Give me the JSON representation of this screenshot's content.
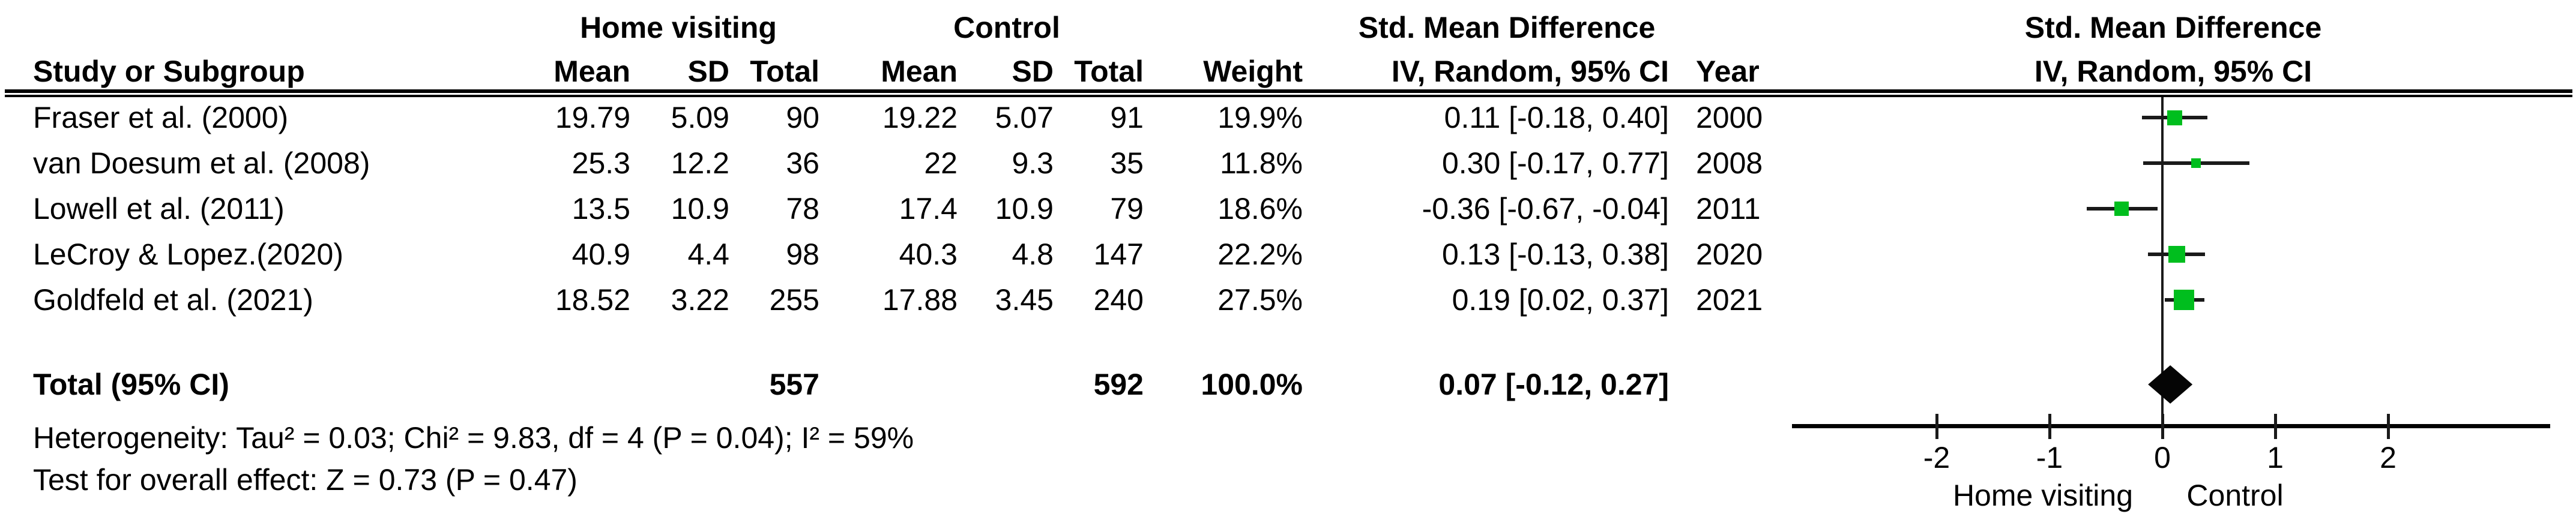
{
  "figure": {
    "kind": "meta-analysis forest plot",
    "colors": {
      "marker_green": "#00BE1E",
      "line_black": "#1a1a1a",
      "diamond_black": "#050505"
    }
  },
  "header": {
    "group_home_visiting": "Home visiting",
    "group_control": "Control",
    "group_smd_table": "Std. Mean Difference",
    "group_smd_plot": "Std. Mean Difference",
    "col_study": "Study or Subgroup",
    "col_mean_hv": "Mean",
    "col_sd_hv": "SD",
    "col_total_hv": "Total",
    "col_mean_c": "Mean",
    "col_sd_c": "SD",
    "col_total_c": "Total",
    "col_weight": "Weight",
    "col_iv_table": "IV, Random, 95% CI",
    "col_year": "Year",
    "col_iv_plot": "IV, Random, 95% CI"
  },
  "studies": [
    {
      "label": "Fraser et al. (2000)",
      "hv_mean": "19.79",
      "hv_sd": "5.09",
      "hv_total": "90",
      "c_mean": "19.22",
      "c_sd": "5.07",
      "c_total": "91",
      "weight": "19.9%",
      "ci_text": "0.11 [-0.18, 0.40]",
      "year": "2000"
    },
    {
      "label": "van Doesum et al. (2008)",
      "hv_mean": "25.3",
      "hv_sd": "12.2",
      "hv_total": "36",
      "c_mean": "22",
      "c_sd": "9.3",
      "c_total": "35",
      "weight": "11.8%",
      "ci_text": "0.30 [-0.17, 0.77]",
      "year": "2008"
    },
    {
      "label": "Lowell et al. (2011)",
      "hv_mean": "13.5",
      "hv_sd": "10.9",
      "hv_total": "78",
      "c_mean": "17.4",
      "c_sd": "10.9",
      "c_total": "79",
      "weight": "18.6%",
      "ci_text": "-0.36 [-0.67, -0.04]",
      "year": "2011"
    },
    {
      "label": "LeCroy & Lopez.(2020)",
      "hv_mean": "40.9",
      "hv_sd": "4.4",
      "hv_total": "98",
      "c_mean": "40.3",
      "c_sd": "4.8",
      "c_total": "147",
      "weight": "22.2%",
      "ci_text": "0.13 [-0.13, 0.38]",
      "year": "2020"
    },
    {
      "label": "Goldfeld et al. (2021)",
      "hv_mean": "18.52",
      "hv_sd": "3.22",
      "hv_total": "255",
      "c_mean": "17.88",
      "c_sd": "3.45",
      "c_total": "240",
      "weight": "27.5%",
      "ci_text": "0.19 [0.02, 0.37]",
      "year": "2021"
    }
  ],
  "total_row": {
    "label": "Total (95% CI)",
    "hv_total": "557",
    "c_total": "592",
    "weight": "100.0%",
    "ci_text": "0.07 [-0.12, 0.27]"
  },
  "footer": {
    "heterogeneity": "Heterogeneity: Tau² = 0.03; Chi² = 9.83, df = 4 (P = 0.04); I² = 59%",
    "overall_effect": "Test for overall effect: Z = 0.73 (P = 0.47)"
  },
  "axis": {
    "label_left": "Home visiting",
    "label_right": "Control"
  },
  "chart_data": {
    "type": "forest",
    "title": "Std. Mean Difference",
    "effect_model": "IV, Random, 95% CI",
    "x_ticks": [
      -2,
      -1,
      0,
      1,
      2
    ],
    "xlim": [
      -3.3,
      3.4
    ],
    "xlabel_left": "Home visiting",
    "xlabel_right": "Control",
    "studies": [
      {
        "name": "Fraser et al. (2000)",
        "year": 2000,
        "smd": 0.11,
        "ci": [
          -0.18,
          0.4
        ],
        "weight_pct": 19.9,
        "n_treat": 90,
        "n_control": 91
      },
      {
        "name": "van Doesum et al. (2008)",
        "year": 2008,
        "smd": 0.3,
        "ci": [
          -0.17,
          0.77
        ],
        "weight_pct": 11.8,
        "n_treat": 36,
        "n_control": 35
      },
      {
        "name": "Lowell et al. (2011)",
        "year": 2011,
        "smd": -0.36,
        "ci": [
          -0.67,
          -0.04
        ],
        "weight_pct": 18.6,
        "n_treat": 78,
        "n_control": 79
      },
      {
        "name": "LeCroy & Lopez.(2020)",
        "year": 2020,
        "smd": 0.13,
        "ci": [
          -0.13,
          0.38
        ],
        "weight_pct": 22.2,
        "n_treat": 98,
        "n_control": 147
      },
      {
        "name": "Goldfeld et al. (2021)",
        "year": 2021,
        "smd": 0.19,
        "ci": [
          0.02,
          0.37
        ],
        "weight_pct": 27.5,
        "n_treat": 255,
        "n_control": 240
      }
    ],
    "total": {
      "smd": 0.07,
      "ci": [
        -0.12,
        0.27
      ],
      "n_treat": 557,
      "n_control": 592,
      "weight_pct": 100.0
    },
    "heterogeneity": {
      "tau2": 0.03,
      "chi2": 9.83,
      "df": 4,
      "p": 0.04,
      "i2_pct": 59
    },
    "overall_effect": {
      "z": 0.73,
      "p": 0.47
    }
  }
}
